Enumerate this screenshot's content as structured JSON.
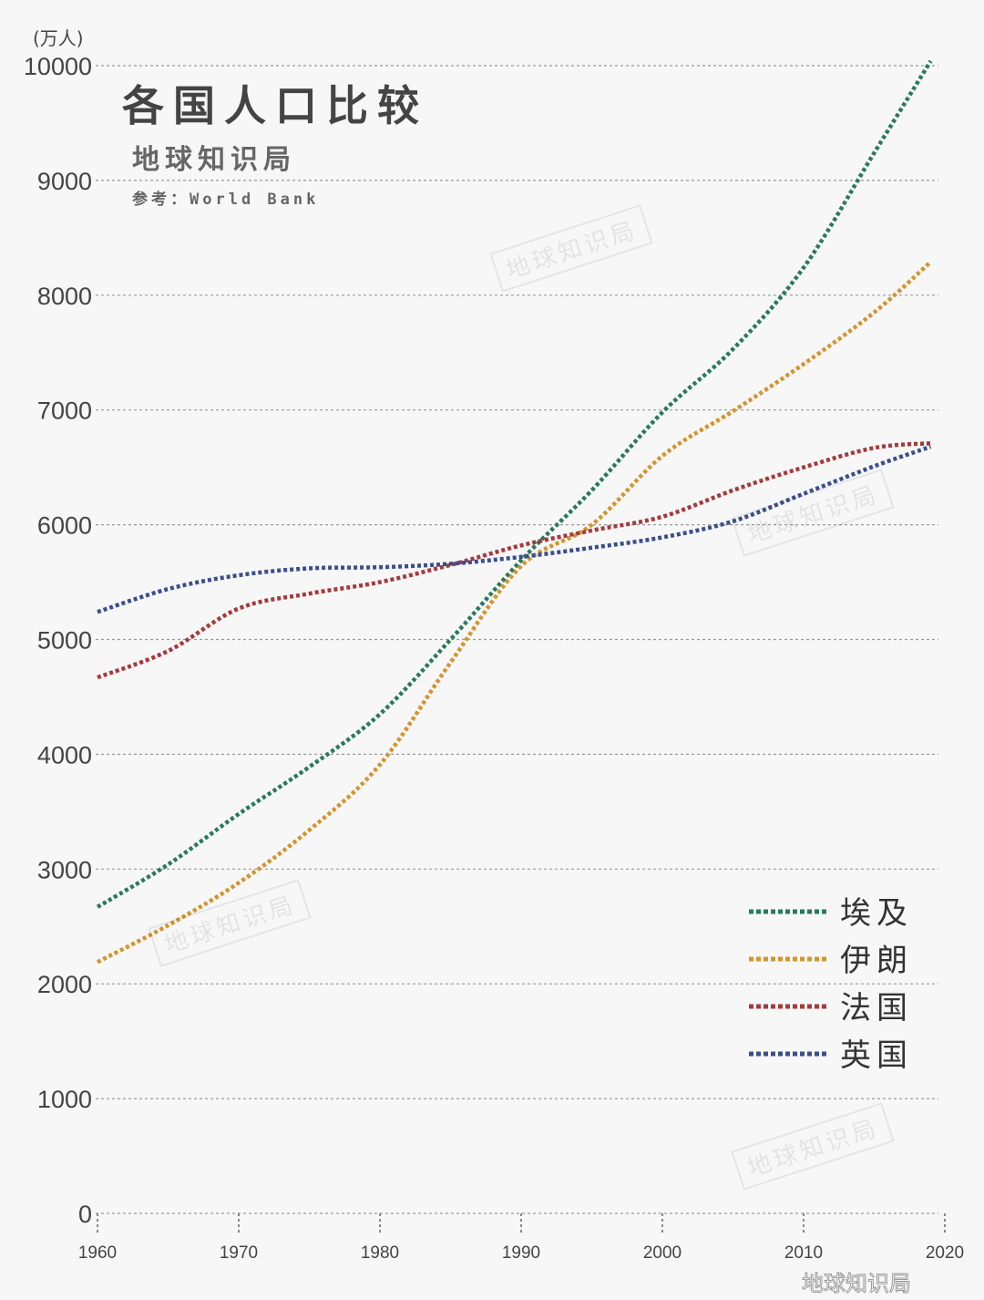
{
  "title": "各国人口比较",
  "subtitle": "地球知识局",
  "source": "参考：World Bank",
  "watermark": "地球知识局",
  "chart_data": {
    "type": "line",
    "ylabel": "(万人)",
    "ylim": [
      0,
      10000
    ],
    "xlim": [
      1960,
      2020
    ],
    "yticks": [
      0,
      1000,
      2000,
      3000,
      4000,
      5000,
      6000,
      7000,
      8000,
      9000,
      10000
    ],
    "xticks": [
      1960,
      1970,
      1980,
      1990,
      2000,
      2010,
      2020
    ],
    "grid": "horizontal dashed",
    "legend_position": "bottom-right",
    "x": [
      1960,
      1965,
      1970,
      1975,
      1980,
      1985,
      1990,
      1995,
      2000,
      2005,
      2010,
      2015,
      2019
    ],
    "series": [
      {
        "name": "埃及",
        "color": "#2a7a58",
        "values": [
          2670,
          3040,
          3480,
          3890,
          4350,
          5000,
          5690,
          6300,
          6980,
          7530,
          8240,
          9240,
          10040
        ]
      },
      {
        "name": "伊朗",
        "color": "#d3952f",
        "values": [
          2190,
          2510,
          2880,
          3340,
          3910,
          4800,
          5640,
          6000,
          6600,
          6990,
          7400,
          7850,
          8290
        ]
      },
      {
        "name": "法国",
        "color": "#a53a3c",
        "values": [
          4670,
          4900,
          5270,
          5400,
          5500,
          5650,
          5820,
          5950,
          6070,
          6300,
          6500,
          6670,
          6710
        ]
      },
      {
        "name": "英国",
        "color": "#3b4f8e",
        "values": [
          5240,
          5440,
          5560,
          5620,
          5630,
          5660,
          5720,
          5800,
          5890,
          6030,
          6270,
          6510,
          6680
        ]
      }
    ]
  }
}
